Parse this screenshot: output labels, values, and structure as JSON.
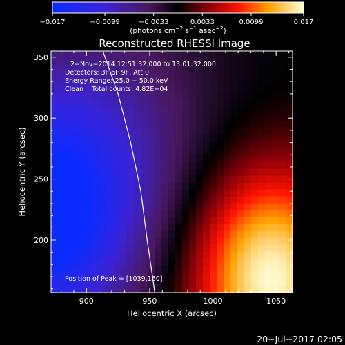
{
  "chart_data": {
    "type": "heatmap",
    "title": "Reconstructed RHESSI Image",
    "xlabel": "Heliocentric X (arcsec)",
    "ylabel": "Heliocentric Y (arcsec)",
    "xlim": [
      872,
      1063
    ],
    "ylim": [
      157,
      355
    ],
    "x_ticks": [
      {
        "value": 900,
        "label": "900"
      },
      {
        "value": 950,
        "label": "950"
      },
      {
        "value": 1000,
        "label": "1000"
      },
      {
        "value": 1050,
        "label": "1050"
      }
    ],
    "y_ticks": [
      {
        "value": 200,
        "label": "200"
      },
      {
        "value": 250,
        "label": "250"
      },
      {
        "value": 300,
        "label": "300"
      },
      {
        "value": 350,
        "label": "350"
      }
    ],
    "colorbar": {
      "min": -0.017,
      "max": 0.017,
      "ticks": [
        "−0.017",
        "−0.0099",
        "−0.0033",
        "0.0033",
        "0.0099",
        "0.017"
      ],
      "tick_values": [
        -0.017,
        -0.0099,
        -0.0033,
        0.0033,
        0.0099,
        0.017
      ],
      "unit_prefix": "(photons cm",
      "unit_exp1": "−2",
      "unit_mid": " s",
      "unit_exp2": "−1",
      "unit_mid2": " asec",
      "unit_exp3": "−2",
      "unit_suffix": ")"
    },
    "annotations": [
      "2−Nov−2014 12:51:32.000 to 13:01:32.000",
      "Detectors: 3F 6F 9F, Att 0",
      "Energy Range: 25.0 − 50.0 keV",
      "Clean    Total counts: 4.82E+04"
    ],
    "peak_label": "Position of Peak = [1039,160]",
    "peak": [
      1039,
      160
    ],
    "limb_curve": [
      [
        913,
        355
      ],
      [
        925,
        320
      ],
      [
        935,
        280
      ],
      [
        943,
        240
      ],
      [
        948,
        200
      ],
      [
        952,
        172
      ],
      [
        954,
        157
      ]
    ],
    "sources": [
      {
        "x": 1045,
        "y": 170,
        "sigma_x": 42,
        "sigma_y": 62,
        "amplitude": 0.017
      },
      {
        "x": 868,
        "y": 215,
        "sigma_x": 48,
        "sigma_y": 65,
        "amplitude": -0.017
      },
      {
        "x": 905,
        "y": 290,
        "sigma_x": 70,
        "sigma_y": 75,
        "amplitude": -0.006
      }
    ]
  },
  "footer": {
    "timestamp": "20−Jul−2017 02:05"
  }
}
